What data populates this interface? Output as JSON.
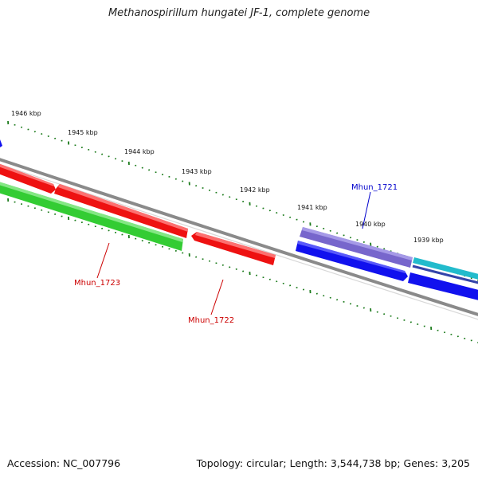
{
  "title": "Methanospirillum hungatei JF-1, complete genome",
  "footer": {
    "accession": "Accession: NC_007796",
    "summary": "Topology: circular; Length: 3,544,738 bp; Genes: 3,205"
  },
  "colors": {
    "backbone": "#7a7a7a",
    "tick": "#1a7a1a",
    "gene_forward_red": "#ee1111",
    "gene_green": "#33cc33",
    "gene_blue": "#1111ee",
    "gene_purple": "#7766cc",
    "gene_cyan": "#22bbcc",
    "label_red": "#cc0000",
    "label_blue": "#0000cc"
  },
  "ruler": {
    "labels": [
      "1946 kbp",
      "1945 kbp",
      "1944 kbp",
      "1943 kbp",
      "1942 kbp",
      "1941 kbp",
      "1940 kbp",
      "1939 kbp"
    ]
  },
  "genes": {
    "labels": [
      "Mhun_1723",
      "Mhun_1722",
      "Mhun_1721"
    ]
  }
}
